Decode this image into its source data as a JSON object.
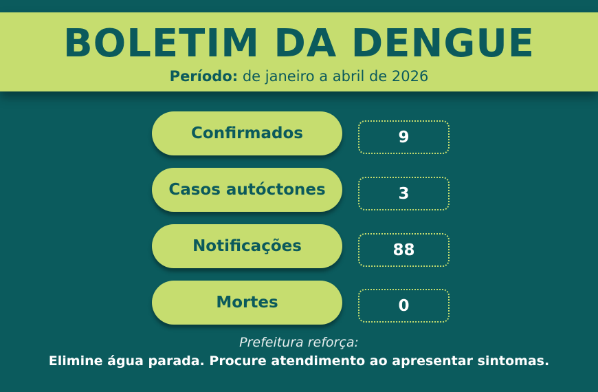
{
  "header": {
    "title": "BOLETIM DA DENGUE",
    "period_label": "Período:",
    "period_value": "de janeiro a abril de 2026"
  },
  "stats": [
    {
      "label": "Confirmados",
      "value": "9"
    },
    {
      "label": "Casos autóctones",
      "value": "3"
    },
    {
      "label": "Notificações",
      "value": "88"
    },
    {
      "label": "Mortes",
      "value": "0"
    }
  ],
  "footer": {
    "note": "Prefeitura reforça:",
    "message": "Elimine água parada. Procure atendimento ao apresentar sintomas."
  },
  "colors": {
    "background": "#0b5b5d",
    "accent": "#c6dd6f",
    "text_dark": "#0b5a5c"
  }
}
